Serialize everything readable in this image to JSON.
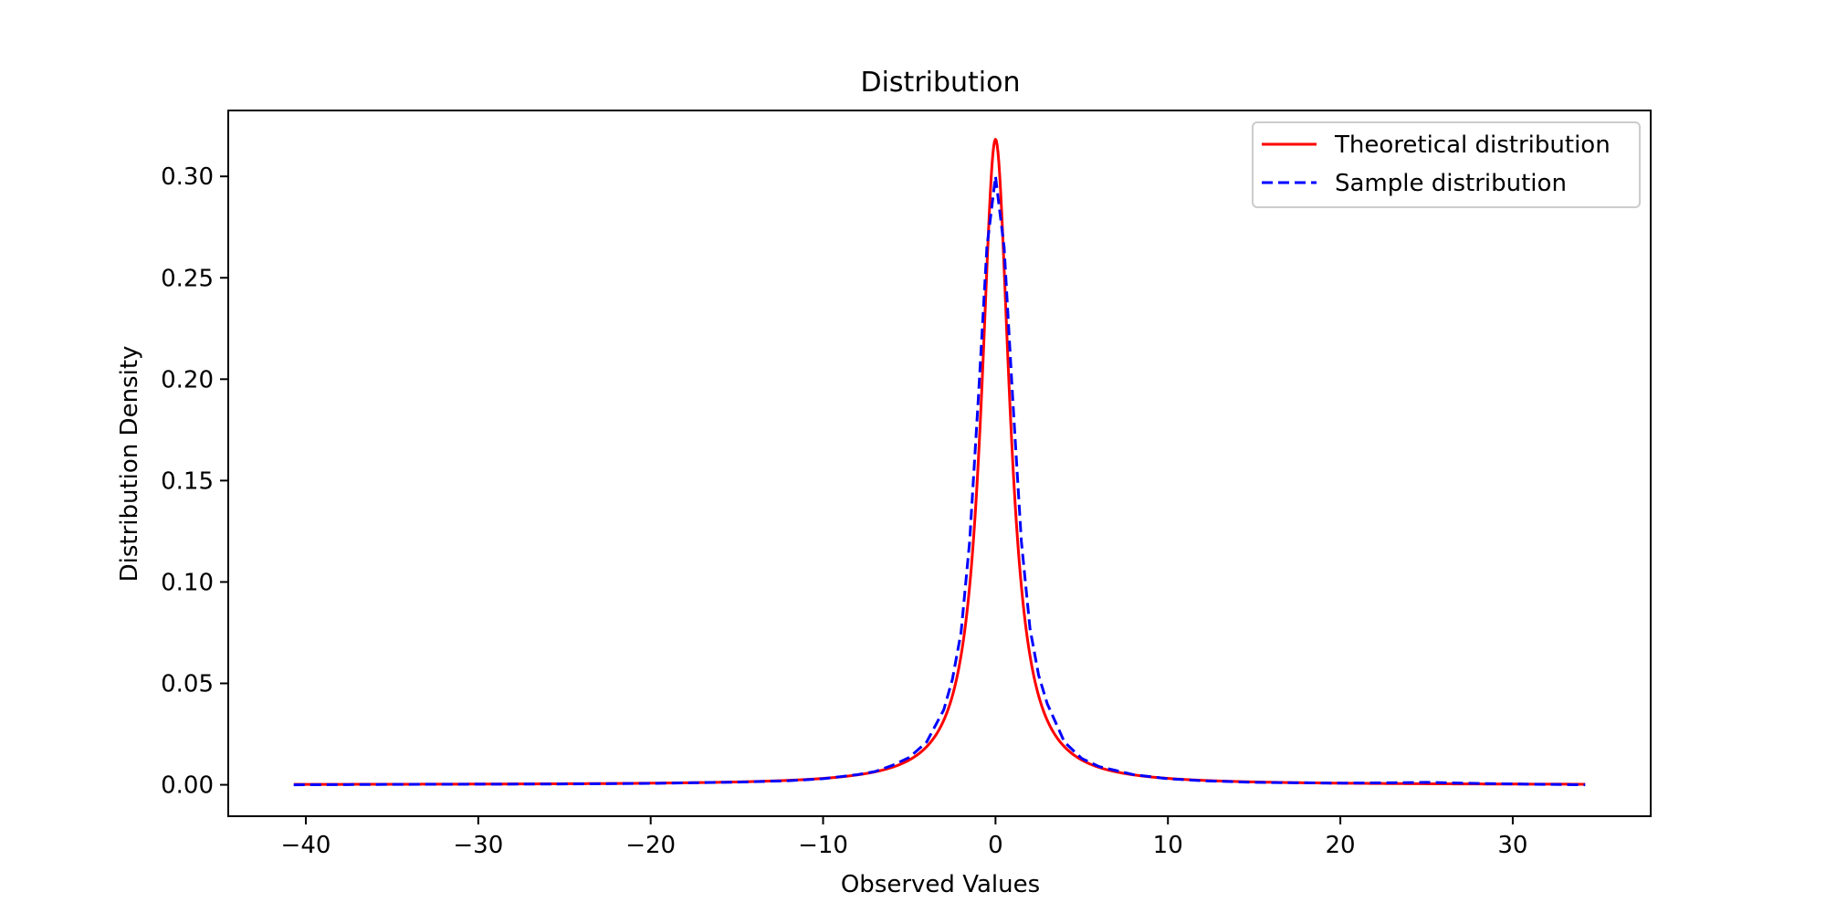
{
  "chart_data": {
    "type": "line",
    "title": "Distribution",
    "xlabel": "Observed Values",
    "ylabel": "Distribution Density",
    "xlim": [
      -44.5,
      38.0
    ],
    "ylim": [
      -0.0155,
      0.3325
    ],
    "xticks": [
      -40,
      -30,
      -20,
      -10,
      0,
      10,
      20,
      30
    ],
    "xtick_labels": [
      "−40",
      "−30",
      "−20",
      "−10",
      "0",
      "10",
      "20",
      "30"
    ],
    "yticks": [
      0.0,
      0.05,
      0.1,
      0.15,
      0.2,
      0.25,
      0.3
    ],
    "ytick_labels": [
      "0.00",
      "0.05",
      "0.10",
      "0.15",
      "0.20",
      "0.25",
      "0.30"
    ],
    "grid": false,
    "legend": {
      "position": "top-right",
      "entries": [
        {
          "label": "Theoretical distribution",
          "color": "#ff0000",
          "style": "solid"
        },
        {
          "label": "Sample distribution",
          "color": "#0000ff",
          "style": "dashed"
        }
      ]
    },
    "series": [
      {
        "name": "Theoretical distribution",
        "color": "#ff0000",
        "style": "solid",
        "model": "cauchy",
        "x0": 0.0,
        "gamma": 1.0,
        "x_range": [
          -40.7,
          34.2
        ]
      },
      {
        "name": "Sample distribution",
        "color": "#0000ff",
        "style": "dashed",
        "x": [
          -40.7,
          -35,
          -30,
          -25,
          -20,
          -15,
          -12,
          -10,
          -9,
          -8,
          -7,
          -6,
          -5,
          -4,
          -3,
          -2.5,
          -2,
          -1.5,
          -1,
          -0.5,
          0,
          0.5,
          1,
          1.5,
          2,
          2.5,
          3,
          4,
          5,
          6,
          7,
          8,
          10,
          12,
          15,
          20,
          23,
          25,
          27,
          30,
          34.2
        ],
        "y": [
          0.0,
          0.0002,
          0.0003,
          0.0004,
          0.0007,
          0.0013,
          0.002,
          0.003,
          0.004,
          0.005,
          0.0065,
          0.0095,
          0.0135,
          0.021,
          0.037,
          0.052,
          0.075,
          0.12,
          0.19,
          0.265,
          0.3,
          0.265,
          0.19,
          0.12,
          0.077,
          0.054,
          0.04,
          0.021,
          0.013,
          0.009,
          0.007,
          0.005,
          0.003,
          0.002,
          0.0012,
          0.0008,
          0.001,
          0.0012,
          0.0008,
          0.0004,
          0.0
        ]
      }
    ]
  }
}
